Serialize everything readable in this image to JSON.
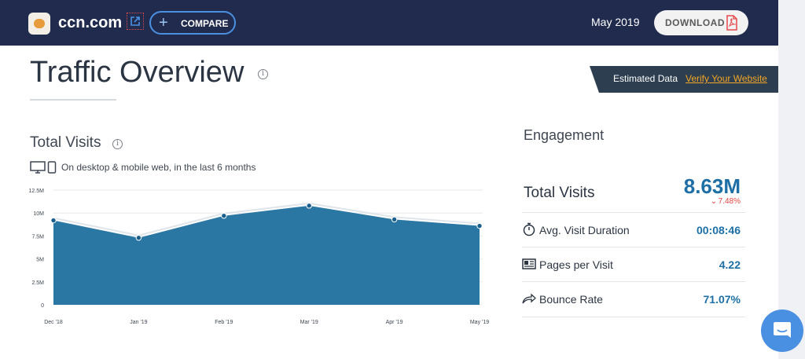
{
  "header": {
    "site": "ccn.com",
    "compare_label": "COMPARE",
    "date": "May 2019",
    "download_label": "DOWNLOAD",
    "colors": {
      "bar": "#202b4d",
      "accent": "#4a90e2"
    }
  },
  "page": {
    "title": "Traffic Overview",
    "banner": {
      "estimated": "Estimated Data",
      "verify": "Verify Your Website"
    }
  },
  "total_visits": {
    "title": "Total Visits",
    "subtitle": "On desktop & mobile web, in the last 6 months"
  },
  "chart_data": {
    "type": "area",
    "categories": [
      "Dec '18",
      "Jan '19",
      "Feb '19",
      "Mar '19",
      "Apr '19",
      "May '19"
    ],
    "series": [
      {
        "values": [
          9.2,
          7.3,
          9.7,
          10.8,
          9.3,
          8.6
        ]
      }
    ],
    "y_ticks": [
      "0",
      "2.5M",
      "5M",
      "7.5M",
      "10M",
      "12.5M"
    ],
    "ylim": [
      0,
      12.5
    ],
    "grid": true,
    "colors": {
      "fill": "#2b77a4",
      "line": "#dfe5ea",
      "point": "#1b5f8c"
    }
  },
  "engagement": {
    "title": "Engagement",
    "total_visits_label": "Total Visits",
    "total_visits_value": "8.63M",
    "change": "7.48%",
    "metrics": [
      {
        "icon": "stopwatch-icon",
        "label": "Avg. Visit Duration",
        "value": "00:08:46"
      },
      {
        "icon": "pages-icon",
        "label": "Pages per Visit",
        "value": "4.22"
      },
      {
        "icon": "bounce-arrow-icon",
        "label": "Bounce Rate",
        "value": "71.07%"
      }
    ]
  }
}
